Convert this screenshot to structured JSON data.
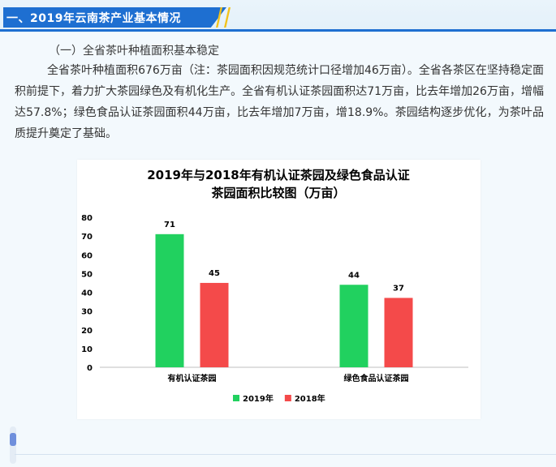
{
  "header": {
    "title": "一、2019年云南茶产业基本情况",
    "accent_color": "#1e6fd1",
    "stripe_color": "#f2c21a"
  },
  "section": {
    "subheading": "（一）全省茶叶种植面积基本稳定",
    "paragraph": "全省茶叶种植面积676万亩（注：茶园面积因规范统计口径增加46万亩）。全省各茶区在坚持稳定面积前提下，着力扩大茶园绿色及有机化生产。全省有机认证茶园面积达71万亩，比去年增加26万亩，增幅达57.8%；绿色食品认证茶园面积44万亩，比去年增加7万亩，增18.9%。茶园结构逐步优化，为茶叶品质提升奠定了基础。"
  },
  "chart_data": {
    "type": "bar",
    "title_line1": "2019年与2018年有机认证茶园及绿色食品认证",
    "title_line2": "茶园面积比较图（万亩）",
    "categories": [
      "有机认证茶园",
      "绿色食品认证茶园"
    ],
    "series": [
      {
        "name": "2019年",
        "values": [
          71,
          44
        ],
        "color": "#21d15f"
      },
      {
        "name": "2018年",
        "values": [
          45,
          37
        ],
        "color": "#f44a4a"
      }
    ],
    "ylim": [
      0,
      80
    ],
    "yticks": [
      0,
      10,
      20,
      30,
      40,
      50,
      60,
      70,
      80
    ],
    "grid": false,
    "legend": "bottom",
    "data_labels": true
  }
}
